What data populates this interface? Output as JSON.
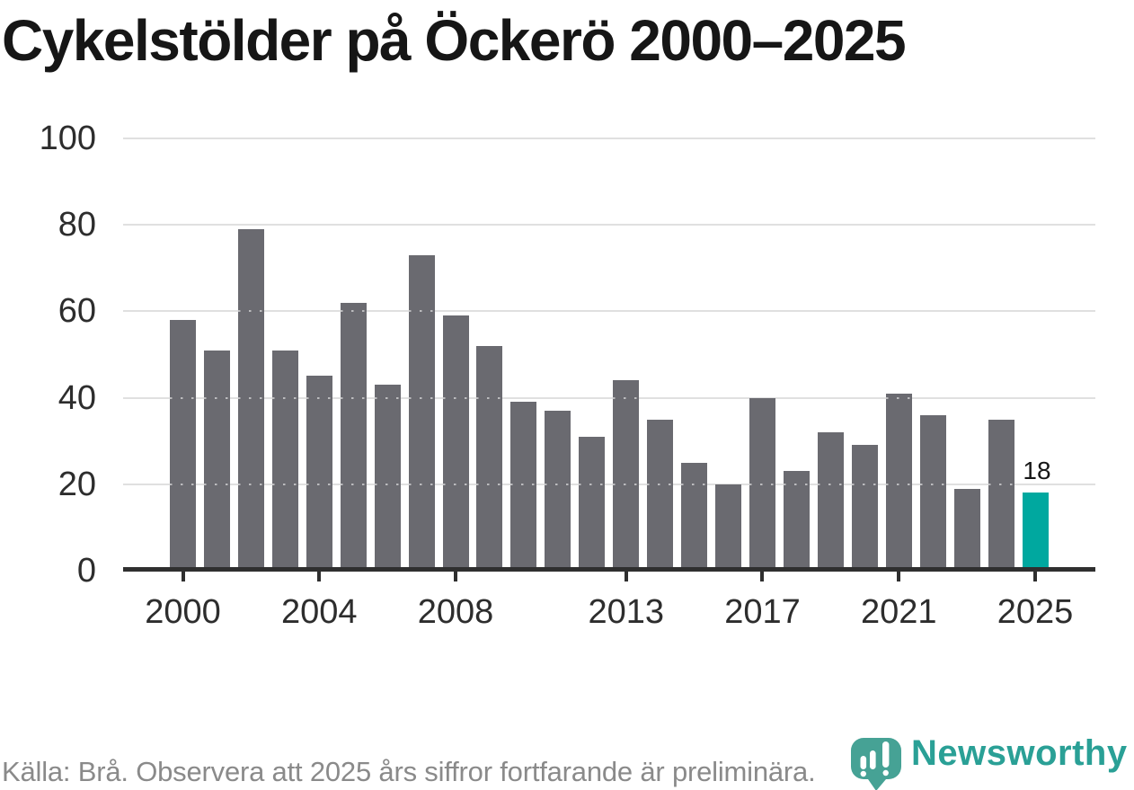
{
  "header": {
    "title": "Cykelstölder på Öckerö 2000–2025"
  },
  "footer": {
    "source_note": "Källa: Brå. Observera att 2025 års siffror fortfarande är preliminära."
  },
  "logo": {
    "wordmark": "Newsworthy",
    "icon": "newsworthy-speech-bubble-bar-chart-icon",
    "icon_color": "#46a295",
    "wordmark_color": "#2aa096"
  },
  "colors": {
    "bar": "#6a6a70",
    "highlight": "#00a89f",
    "gridline": "#e0e0e0",
    "axis": "#2f2f2f",
    "tick_label": "#2d2d2d",
    "title": "#161616",
    "source_note": "#8a8a8a",
    "value_label": "#161616"
  },
  "chart_data": {
    "type": "bar",
    "title": "Cykelstölder på Öckerö 2000–2025",
    "xlabel": "",
    "ylabel": "",
    "x": [
      2000,
      2001,
      2002,
      2003,
      2004,
      2005,
      2006,
      2007,
      2008,
      2009,
      2010,
      2011,
      2012,
      2013,
      2014,
      2015,
      2016,
      2017,
      2018,
      2019,
      2020,
      2021,
      2022,
      2023,
      2024,
      2025
    ],
    "values": [
      58,
      51,
      79,
      51,
      45,
      62,
      43,
      73,
      59,
      52,
      39,
      37,
      31,
      44,
      35,
      25,
      20,
      40,
      23,
      32,
      29,
      41,
      36,
      19,
      35,
      18
    ],
    "highlight_x": 2025,
    "value_labels": [
      {
        "x": 2025,
        "text": "18"
      }
    ],
    "x_tick_labels": [
      "2000",
      "2004",
      "2008",
      "2013",
      "2017",
      "2021",
      "2025"
    ],
    "y_ticks": [
      0,
      20,
      40,
      60,
      80,
      100
    ],
    "ylim": [
      0,
      100
    ],
    "grid": "horizontal",
    "legend": "none"
  }
}
